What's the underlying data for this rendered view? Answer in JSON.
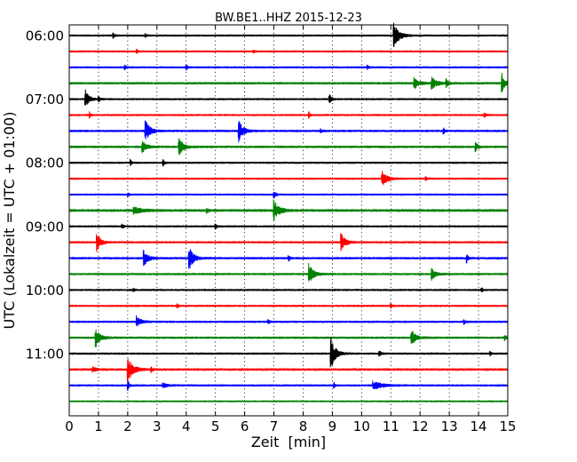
{
  "chart_data": {
    "type": "line",
    "title": "BW.BE1..HHZ 2015-12-23",
    "xlabel": "Zeit  [min]",
    "ylabel": "UTC (Lokalzeit = UTC + 01:00)",
    "xlim": [
      0,
      15
    ],
    "x_ticks": [
      "0",
      "1",
      "2",
      "3",
      "4",
      "5",
      "6",
      "7",
      "8",
      "9",
      "10",
      "11",
      "12",
      "13",
      "14",
      "15"
    ],
    "y_ticks": [
      "06:00",
      "07:00",
      "08:00",
      "09:00",
      "10:00",
      "11:00"
    ],
    "grid": "vertical dotted lines at each minute",
    "legend": "none",
    "trace_colors": [
      "#000000",
      "#ff0000",
      "#0000ff",
      "#008000"
    ],
    "traces": [
      {
        "start": "06:00",
        "noise": 0.12,
        "events": [
          {
            "min": 11.1,
            "amp": 2.2,
            "dur": 0.35
          },
          {
            "min": 1.5,
            "amp": 0.4,
            "dur": 0.1
          },
          {
            "min": 2.6,
            "amp": 0.3,
            "dur": 0.1
          }
        ]
      },
      {
        "start": "06:15",
        "noise": 0.12,
        "events": [
          {
            "min": 2.3,
            "amp": 0.35,
            "dur": 0.1
          },
          {
            "min": 6.3,
            "amp": 0.3,
            "dur": 0.1
          }
        ]
      },
      {
        "start": "06:30",
        "noise": 0.12,
        "events": [
          {
            "min": 1.9,
            "amp": 0.35,
            "dur": 0.1
          },
          {
            "min": 4.0,
            "amp": 0.4,
            "dur": 0.1
          },
          {
            "min": 10.2,
            "amp": 0.3,
            "dur": 0.1
          }
        ]
      },
      {
        "start": "06:45",
        "noise": 0.15,
        "events": [
          {
            "min": 11.8,
            "amp": 1.0,
            "dur": 0.3
          },
          {
            "min": 12.4,
            "amp": 1.0,
            "dur": 0.35
          },
          {
            "min": 14.8,
            "amp": 1.7,
            "dur": 0.2
          },
          {
            "min": 12.9,
            "amp": 0.6,
            "dur": 0.15
          }
        ]
      },
      {
        "start": "07:00",
        "noise": 0.12,
        "events": [
          {
            "min": 0.55,
            "amp": 1.6,
            "dur": 0.25
          },
          {
            "min": 8.9,
            "amp": 0.9,
            "dur": 0.12
          },
          {
            "min": 1.0,
            "amp": 0.5,
            "dur": 0.1
          }
        ]
      },
      {
        "start": "07:15",
        "noise": 0.12,
        "events": [
          {
            "min": 0.7,
            "amp": 0.5,
            "dur": 0.08
          },
          {
            "min": 8.2,
            "amp": 0.5,
            "dur": 0.08
          },
          {
            "min": 14.2,
            "amp": 0.4,
            "dur": 0.1
          }
        ]
      },
      {
        "start": "07:30",
        "noise": 0.14,
        "events": [
          {
            "min": 2.6,
            "amp": 2.0,
            "dur": 0.3
          },
          {
            "min": 5.8,
            "amp": 1.8,
            "dur": 0.3
          },
          {
            "min": 12.8,
            "amp": 0.5,
            "dur": 0.1
          },
          {
            "min": 8.6,
            "amp": 0.3,
            "dur": 0.1
          }
        ]
      },
      {
        "start": "07:45",
        "noise": 0.15,
        "events": [
          {
            "min": 2.5,
            "amp": 1.0,
            "dur": 0.3
          },
          {
            "min": 3.75,
            "amp": 1.5,
            "dur": 0.3
          },
          {
            "min": 13.9,
            "amp": 0.8,
            "dur": 0.15
          }
        ]
      },
      {
        "start": "08:00",
        "noise": 0.12,
        "events": [
          {
            "min": 2.1,
            "amp": 0.5,
            "dur": 0.08
          },
          {
            "min": 3.2,
            "amp": 0.6,
            "dur": 0.1
          }
        ]
      },
      {
        "start": "08:15",
        "noise": 0.12,
        "events": [
          {
            "min": 10.7,
            "amp": 1.3,
            "dur": 0.35
          },
          {
            "min": 12.2,
            "amp": 0.3,
            "dur": 0.1
          }
        ]
      },
      {
        "start": "08:30",
        "noise": 0.12,
        "events": [
          {
            "min": 7.0,
            "amp": 0.7,
            "dur": 0.12
          },
          {
            "min": 2.0,
            "amp": 0.4,
            "dur": 0.08
          }
        ]
      },
      {
        "start": "08:45",
        "noise": 0.18,
        "events": [
          {
            "min": 7.0,
            "amp": 1.8,
            "dur": 0.35
          },
          {
            "min": 2.2,
            "amp": 0.6,
            "dur": 0.5
          },
          {
            "min": 4.7,
            "amp": 0.4,
            "dur": 0.1
          }
        ]
      },
      {
        "start": "09:00",
        "noise": 0.12,
        "events": [
          {
            "min": 1.8,
            "amp": 0.5,
            "dur": 0.1
          },
          {
            "min": 5.0,
            "amp": 0.4,
            "dur": 0.1
          }
        ]
      },
      {
        "start": "09:15",
        "noise": 0.13,
        "events": [
          {
            "min": 0.95,
            "amp": 1.6,
            "dur": 0.25
          },
          {
            "min": 9.3,
            "amp": 1.5,
            "dur": 0.3
          }
        ]
      },
      {
        "start": "09:30",
        "noise": 0.14,
        "events": [
          {
            "min": 2.55,
            "amp": 1.3,
            "dur": 0.3
          },
          {
            "min": 4.1,
            "amp": 2.0,
            "dur": 0.3
          },
          {
            "min": 7.5,
            "amp": 0.5,
            "dur": 0.1
          },
          {
            "min": 13.6,
            "amp": 0.7,
            "dur": 0.1
          }
        ]
      },
      {
        "start": "09:45",
        "noise": 0.13,
        "events": [
          {
            "min": 8.2,
            "amp": 1.8,
            "dur": 0.3
          },
          {
            "min": 12.4,
            "amp": 1.0,
            "dur": 0.3
          }
        ]
      },
      {
        "start": "10:00",
        "noise": 0.12,
        "events": [
          {
            "min": 14.1,
            "amp": 0.5,
            "dur": 0.08
          },
          {
            "min": 2.2,
            "amp": 0.3,
            "dur": 0.08
          }
        ]
      },
      {
        "start": "10:15",
        "noise": 0.12,
        "events": [
          {
            "min": 11.0,
            "amp": 0.4,
            "dur": 0.1
          },
          {
            "min": 3.7,
            "amp": 0.3,
            "dur": 0.08
          }
        ]
      },
      {
        "start": "10:30",
        "noise": 0.13,
        "events": [
          {
            "min": 2.3,
            "amp": 1.0,
            "dur": 0.3
          },
          {
            "min": 13.5,
            "amp": 0.5,
            "dur": 0.1
          },
          {
            "min": 6.8,
            "amp": 0.4,
            "dur": 0.08
          }
        ]
      },
      {
        "start": "10:45",
        "noise": 0.14,
        "events": [
          {
            "min": 0.9,
            "amp": 1.7,
            "dur": 0.3
          },
          {
            "min": 11.7,
            "amp": 1.3,
            "dur": 0.3
          },
          {
            "min": 14.9,
            "amp": 0.5,
            "dur": 0.1
          }
        ]
      },
      {
        "start": "11:00",
        "noise": 0.13,
        "events": [
          {
            "min": 8.95,
            "amp": 2.8,
            "dur": 0.3
          },
          {
            "min": 10.6,
            "amp": 0.5,
            "dur": 0.15
          },
          {
            "min": 14.4,
            "amp": 0.3,
            "dur": 0.08
          }
        ]
      },
      {
        "start": "11:15",
        "noise": 0.16,
        "events": [
          {
            "min": 2.0,
            "amp": 2.1,
            "dur": 0.35
          },
          {
            "min": 2.8,
            "amp": 0.5,
            "dur": 0.1
          },
          {
            "min": 0.8,
            "amp": 0.4,
            "dur": 0.2
          }
        ]
      },
      {
        "start": "11:30",
        "noise": 0.13,
        "events": [
          {
            "min": 10.4,
            "amp": 0.7,
            "dur": 0.6
          },
          {
            "min": 9.05,
            "amp": 0.6,
            "dur": 0.08
          },
          {
            "min": 3.2,
            "amp": 0.4,
            "dur": 0.3
          },
          {
            "min": 2.0,
            "amp": 1.0,
            "dur": 0.1
          }
        ]
      },
      {
        "start": "11:45",
        "noise": 0.1,
        "events": []
      }
    ]
  }
}
